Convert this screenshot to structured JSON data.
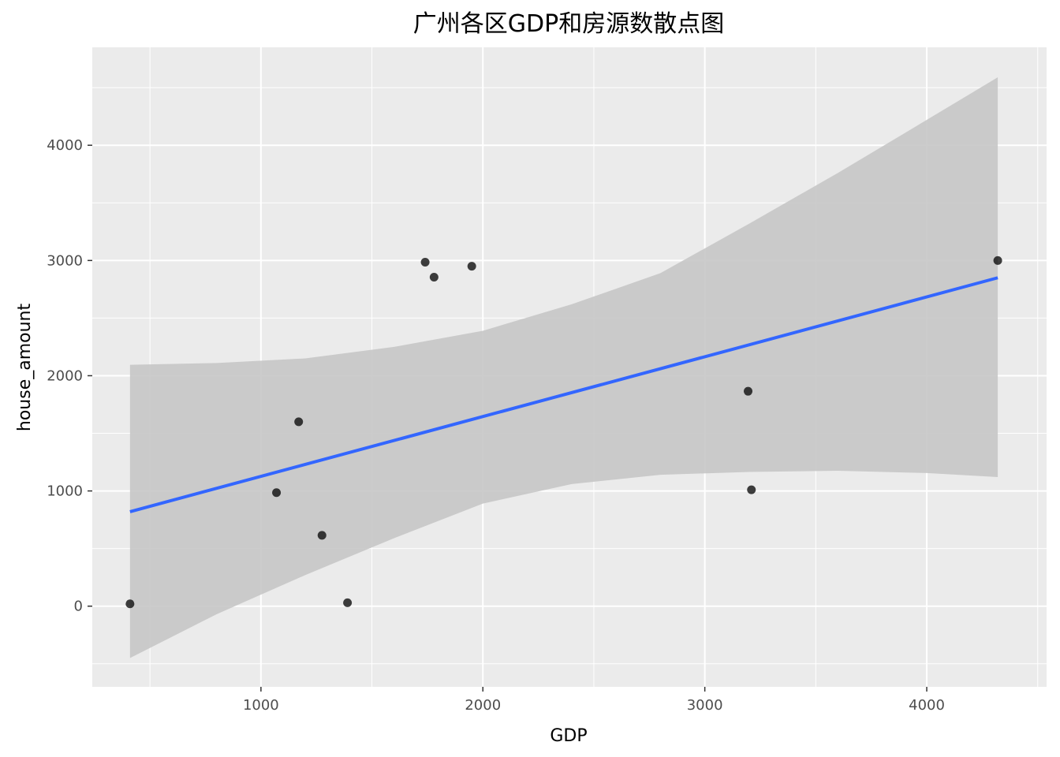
{
  "chart_data": {
    "type": "scatter",
    "title": "广州各区GDP和房源数散点图",
    "xlabel": "GDP",
    "ylabel": "house_amount",
    "xlim": [
      240,
      4540
    ],
    "ylim": [
      -700,
      4850
    ],
    "x_ticks": [
      1000,
      2000,
      3000,
      4000
    ],
    "y_ticks": [
      0,
      1000,
      2000,
      3000,
      4000
    ],
    "grid": true,
    "points": [
      {
        "x": 410,
        "y": 20
      },
      {
        "x": 1070,
        "y": 985
      },
      {
        "x": 1170,
        "y": 1600
      },
      {
        "x": 1275,
        "y": 615
      },
      {
        "x": 1390,
        "y": 30
      },
      {
        "x": 1740,
        "y": 2985
      },
      {
        "x": 1780,
        "y": 2855
      },
      {
        "x": 1950,
        "y": 2950
      },
      {
        "x": 3195,
        "y": 1865
      },
      {
        "x": 3210,
        "y": 1010
      },
      {
        "x": 4320,
        "y": 3000
      }
    ],
    "trend_line": {
      "x": [
        410,
        4320
      ],
      "y": [
        820,
        2850
      ]
    },
    "confidence_band": {
      "x": [
        410,
        800,
        1200,
        1600,
        2000,
        2400,
        2800,
        3200,
        3600,
        4000,
        4320
      ],
      "lower": [
        -450,
        -70,
        270,
        590,
        890,
        1060,
        1140,
        1165,
        1175,
        1155,
        1120
      ],
      "upper": [
        2095,
        2110,
        2150,
        2250,
        2390,
        2620,
        2890,
        3320,
        3760,
        4220,
        4590
      ]
    },
    "colors": {
      "panel": "#EBEBEB",
      "grid": "#FFFFFF",
      "band": "#C7C7C7",
      "line": "#3366FF",
      "point": "#000000"
    }
  }
}
